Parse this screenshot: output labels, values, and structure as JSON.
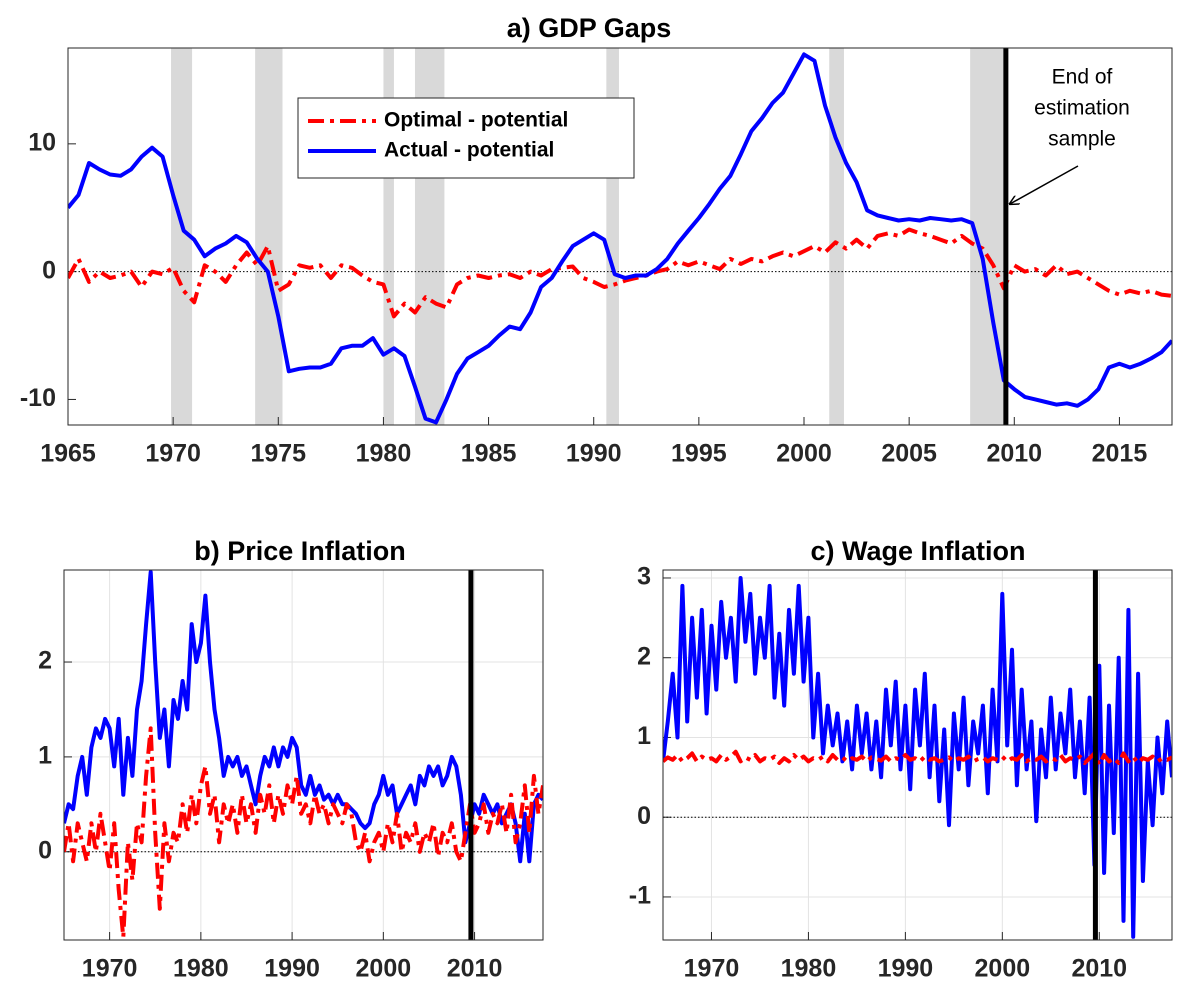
{
  "chart_data": [
    {
      "type": "line",
      "title": "a) GDP Gaps",
      "x": [
        1965,
        1965.5,
        1966,
        1966.5,
        1967,
        1967.5,
        1968,
        1968.5,
        1969,
        1969.5,
        1970,
        1970.5,
        1971,
        1971.5,
        1972,
        1972.5,
        1973,
        1973.5,
        1974,
        1974.5,
        1975,
        1975.5,
        1976,
        1976.5,
        1977,
        1977.5,
        1978,
        1978.5,
        1979,
        1979.5,
        1980,
        1980.5,
        1981,
        1981.5,
        1982,
        1982.5,
        1983,
        1983.5,
        1984,
        1984.5,
        1985,
        1985.5,
        1986,
        1986.5,
        1987,
        1987.5,
        1988,
        1988.5,
        1989,
        1989.5,
        1990,
        1990.5,
        1991,
        1991.5,
        1992,
        1992.5,
        1993,
        1993.5,
        1994,
        1994.5,
        1995,
        1995.5,
        1996,
        1996.5,
        1997,
        1997.5,
        1998,
        1998.5,
        1999,
        1999.5,
        2000,
        2000.5,
        2001,
        2001.5,
        2002,
        2002.5,
        2003,
        2003.5,
        2004,
        2004.5,
        2005,
        2005.5,
        2006,
        2006.5,
        2007,
        2007.5,
        2008,
        2008.5,
        2009,
        2009.5,
        2010,
        2010.5,
        2011,
        2011.5,
        2012,
        2012.5,
        2013,
        2013.5,
        2014,
        2014.5,
        2015,
        2015.5,
        2016,
        2016.5,
        2017,
        2017.5
      ],
      "series": [
        {
          "name": "Optimal - potential",
          "color": "#ff0000",
          "style": "dash-dot",
          "values": [
            -0.5,
            1,
            -0.8,
            0,
            -0.5,
            -0.3,
            0,
            -1.2,
            0,
            -0.2,
            0.3,
            -1.5,
            -2.4,
            0.5,
            0,
            -0.8,
            0.5,
            1.5,
            0.5,
            2,
            -1.5,
            -1,
            0.5,
            0.3,
            0.5,
            -0.5,
            0.5,
            0.3,
            -0.3,
            -0.8,
            -1,
            -3.5,
            -2.5,
            -3.2,
            -2,
            -2.5,
            -2.8,
            -1,
            -0.5,
            -0.3,
            -0.5,
            -0.3,
            -0.2,
            -0.5,
            0,
            -0.3,
            0.2,
            0.3,
            0.4,
            -0.5,
            -0.8,
            -1.2,
            -1,
            -0.7,
            -0.5,
            -0.3,
            0,
            0.2,
            0.8,
            0.5,
            0.8,
            0.5,
            0.2,
            1,
            0.6,
            1,
            0.8,
            1.2,
            1.5,
            1.2,
            1.6,
            2,
            1.5,
            2.3,
            1.8,
            2.5,
            1.8,
            2.8,
            3,
            2.8,
            3.3,
            3,
            2.8,
            2.5,
            2.2,
            2.8,
            2.2,
            1.8,
            0.5,
            -1.3,
            0.5,
            0,
            0.2,
            -0.3,
            0.5,
            -0.2,
            0,
            -0.5,
            -1,
            -1.5,
            -1.8,
            -1.5,
            -1.7,
            -1.5,
            -1.8,
            -1.9
          ]
        },
        {
          "name": "Actual - potential",
          "color": "#0000ff",
          "style": "solid",
          "values": [
            5,
            6,
            8.5,
            8,
            7.6,
            7.5,
            8,
            9,
            9.7,
            9,
            6,
            3.2,
            2.5,
            1.2,
            1.8,
            2.2,
            2.8,
            2.3,
            1,
            0,
            -3.5,
            -7.8,
            -7.6,
            -7.5,
            -7.5,
            -7.2,
            -6,
            -5.8,
            -5.8,
            -5.2,
            -6.5,
            -6,
            -6.6,
            -9,
            -11.5,
            -11.8,
            -10,
            -8,
            -6.8,
            -6.3,
            -5.8,
            -5,
            -4.3,
            -4.5,
            -3.2,
            -1.2,
            -0.5,
            0.8,
            2,
            2.5,
            3,
            2.5,
            -0.2,
            -0.5,
            -0.3,
            -0.3,
            0.2,
            1,
            2.2,
            3.2,
            4.2,
            5.3,
            6.5,
            7.5,
            9.2,
            11,
            12,
            13.2,
            14,
            15.5,
            17,
            16.5,
            13,
            10.5,
            8.5,
            7,
            4.8,
            4.4,
            4.2,
            4,
            4.1,
            4,
            4.2,
            4.1,
            4,
            4.1,
            3.8,
            1,
            -4,
            -8.5,
            -9.2,
            -9.8,
            -10,
            -10.2,
            -10.4,
            -10.3,
            -10.5,
            -10,
            -9.2,
            -7.5,
            -7.2,
            -7.5,
            -7.2,
            -6.8,
            -6.3,
            -5.4
          ]
        }
      ],
      "xlim": [
        1965,
        2017.5
      ],
      "xticks": [
        1965,
        1970,
        1975,
        1980,
        1985,
        1990,
        1995,
        2000,
        2005,
        2010,
        2015
      ],
      "ylim": [
        -12,
        17.5
      ],
      "yticks": [
        -10,
        0,
        10
      ],
      "grid": false,
      "shaded": [
        [
          1969.9,
          1970.9
        ],
        [
          1973.9,
          1975.2
        ],
        [
          1980,
          1980.5
        ],
        [
          1981.5,
          1982.9
        ],
        [
          1990.6,
          1991.2
        ],
        [
          2001.2,
          2001.9
        ],
        [
          2007.9,
          2009.5
        ]
      ],
      "vline": 2009.6,
      "annotation": [
        "End of",
        "estimation",
        "sample"
      ]
    },
    {
      "type": "line",
      "title": "b) Price Inflation",
      "x": [
        1965,
        1965.5,
        1966,
        1966.5,
        1967,
        1967.5,
        1968,
        1968.5,
        1969,
        1969.5,
        1970,
        1970.5,
        1971,
        1971.5,
        1972,
        1972.5,
        1973,
        1973.5,
        1974,
        1974.5,
        1975,
        1975.5,
        1976,
        1976.5,
        1977,
        1977.5,
        1978,
        1978.5,
        1979,
        1979.5,
        1980,
        1980.5,
        1981,
        1981.5,
        1982,
        1982.5,
        1983,
        1983.5,
        1984,
        1984.5,
        1985,
        1985.5,
        1986,
        1986.5,
        1987,
        1987.5,
        1988,
        1988.5,
        1989,
        1989.5,
        1990,
        1990.5,
        1991,
        1991.5,
        1992,
        1992.5,
        1993,
        1993.5,
        1994,
        1994.5,
        1995,
        1995.5,
        1996,
        1996.5,
        1997,
        1997.5,
        1998,
        1998.5,
        1999,
        1999.5,
        2000,
        2000.5,
        2001,
        2001.5,
        2002,
        2002.5,
        2003,
        2003.5,
        2004,
        2004.5,
        2005,
        2005.5,
        2006,
        2006.5,
        2007,
        2007.5,
        2008,
        2008.5,
        2009,
        2009.5,
        2010,
        2010.5,
        2011,
        2011.5,
        2012,
        2012.5,
        2013,
        2013.5,
        2014,
        2014.5,
        2015,
        2015.5,
        2016,
        2016.5,
        2017,
        2017.5
      ],
      "series": [
        {
          "color": "#0000ff",
          "style": "solid",
          "values": [
            0.3,
            0.5,
            0.45,
            0.8,
            1,
            0.6,
            1.1,
            1.3,
            1.2,
            1.4,
            1.3,
            0.9,
            1.4,
            0.6,
            1.2,
            0.8,
            1.5,
            1.8,
            2.4,
            2.95,
            2,
            1.2,
            1.5,
            0.9,
            1.6,
            1.4,
            1.8,
            1.5,
            2.4,
            2,
            2.2,
            2.7,
            2,
            1.5,
            1.2,
            0.8,
            1,
            0.9,
            1,
            0.8,
            0.9,
            0.7,
            0.5,
            0.8,
            1,
            0.9,
            1.1,
            0.9,
            1.1,
            1,
            1.2,
            1.1,
            0.7,
            0.6,
            0.8,
            0.6,
            0.7,
            0.55,
            0.6,
            0.5,
            0.6,
            0.5,
            0.5,
            0.45,
            0.4,
            0.3,
            0.25,
            0.3,
            0.5,
            0.6,
            0.8,
            0.6,
            0.7,
            0.4,
            0.5,
            0.6,
            0.7,
            0.5,
            0.8,
            0.7,
            0.9,
            0.8,
            0.9,
            0.7,
            0.8,
            1,
            0.9,
            0.6,
            0.1,
            0.3,
            0.5,
            0.4,
            0.6,
            0.5,
            0.4,
            0.5,
            0.3,
            0.4,
            0.5,
            0.3,
            -0.1,
            0.4,
            -0.1,
            0.5,
            0.6,
            0.55
          ]
        },
        {
          "color": "#ff0000",
          "style": "dash-dot",
          "values": [
            0,
            0.3,
            -0.1,
            0.3,
            0.1,
            -0.1,
            0.3,
            0,
            0.4,
            0.1,
            -0.2,
            0.3,
            -0.4,
            -0.9,
            0.1,
            -0.3,
            0.3,
            0.1,
            0.8,
            1.3,
            0.2,
            -0.6,
            0.3,
            -0.1,
            0.2,
            0.1,
            0.5,
            0.2,
            0.6,
            0.3,
            0.7,
            0.9,
            0.4,
            0.6,
            0.1,
            0.5,
            0.3,
            0.5,
            0.2,
            0.6,
            0.3,
            0.5,
            0.2,
            0.6,
            0.4,
            0.7,
            0.3,
            0.6,
            0.4,
            0.7,
            0.5,
            0.8,
            0.4,
            0.5,
            0.3,
            0.6,
            0.4,
            0.5,
            0.3,
            0.5,
            0.4,
            0.3,
            0.5,
            0.4,
            0.1,
            0,
            0.2,
            -0.1,
            0.1,
            0.2,
            0,
            0.3,
            0.1,
            0.4,
            0,
            0.2,
            0.1,
            0.3,
            0,
            0.2,
            0.1,
            0.3,
            -0.05,
            0.2,
            0.1,
            0.3,
            0,
            -0.1,
            0.2,
            0.5,
            0.2,
            0.3,
            0.5,
            0.2,
            0.4,
            0.3,
            0.5,
            0.2,
            0.6,
            0.1,
            0.3,
            0.7,
            0.2,
            0.8,
            0.4,
            0.7
          ]
        }
      ],
      "xlim": [
        1965,
        2017.5
      ],
      "xticks": [
        1970,
        1980,
        1990,
        2000,
        2010
      ],
      "ylim": [
        -0.93,
        2.97
      ],
      "yticks": [
        0,
        1,
        2
      ],
      "grid": true,
      "vline": 2009.6
    },
    {
      "type": "line",
      "title": "c) Wage Inflation",
      "x": [
        1965,
        1965.5,
        1966,
        1966.5,
        1967,
        1967.5,
        1968,
        1968.5,
        1969,
        1969.5,
        1970,
        1970.5,
        1971,
        1971.5,
        1972,
        1972.5,
        1973,
        1973.5,
        1974,
        1974.5,
        1975,
        1975.5,
        1976,
        1976.5,
        1977,
        1977.5,
        1978,
        1978.5,
        1979,
        1979.5,
        1980,
        1980.5,
        1981,
        1981.5,
        1982,
        1982.5,
        1983,
        1983.5,
        1984,
        1984.5,
        1985,
        1985.5,
        1986,
        1986.5,
        1987,
        1987.5,
        1988,
        1988.5,
        1989,
        1989.5,
        1990,
        1990.5,
        1991,
        1991.5,
        1992,
        1992.5,
        1993,
        1993.5,
        1994,
        1994.5,
        1995,
        1995.5,
        1996,
        1996.5,
        1997,
        1997.5,
        1998,
        1998.5,
        1999,
        1999.5,
        2000,
        2000.5,
        2001,
        2001.5,
        2002,
        2002.5,
        2003,
        2003.5,
        2004,
        2004.5,
        2005,
        2005.5,
        2006,
        2006.5,
        2007,
        2007.5,
        2008,
        2008.5,
        2009,
        2009.5,
        2010,
        2010.5,
        2011,
        2011.5,
        2012,
        2012.5,
        2013,
        2013.5,
        2014,
        2014.5,
        2015,
        2015.5,
        2016,
        2016.5,
        2017,
        2017.5
      ],
      "series": [
        {
          "color": "#0000ff",
          "style": "solid",
          "values": [
            0.7,
            1.2,
            1.8,
            1,
            2.9,
            1.2,
            2.5,
            1.5,
            2.6,
            1.3,
            2.4,
            1.6,
            2.7,
            2,
            2.5,
            1.7,
            3,
            2.2,
            2.8,
            1.8,
            2.5,
            2,
            2.9,
            1.5,
            2.3,
            1.4,
            2.6,
            1.8,
            2.9,
            1.7,
            2.5,
            1,
            1.8,
            0.8,
            1.4,
            0.9,
            1.3,
            0.7,
            1.2,
            0.6,
            1.4,
            0.8,
            1.3,
            0.6,
            1.2,
            0.5,
            1.6,
            0.9,
            1.7,
            0.6,
            1.4,
            0.35,
            1.6,
            0.9,
            1.8,
            0.5,
            1.4,
            0.2,
            1.1,
            -0.1,
            1.3,
            0.6,
            1.5,
            0.4,
            1.2,
            0.8,
            1.4,
            0.3,
            1.6,
            0.7,
            2.8,
            0.9,
            2.1,
            0.4,
            1.6,
            0.6,
            1.2,
            -0.05,
            1.1,
            0.5,
            1.5,
            0.6,
            1.3,
            0.8,
            1.6,
            0.5,
            1.2,
            0.3,
            1.5,
            -0.6,
            1.9,
            -0.7,
            1.4,
            -0.2,
            2,
            -1.3,
            2.6,
            -1.5,
            1.8,
            -0.8,
            0.7,
            -0.1,
            1,
            0.3,
            1.2,
            0.5
          ]
        },
        {
          "color": "#ff0000",
          "style": "dash-dot",
          "values": [
            0.7,
            0.75,
            0.72,
            0.78,
            0.7,
            0.74,
            0.8,
            0.7,
            0.76,
            0.72,
            0.74,
            0.7,
            0.78,
            0.72,
            0.76,
            0.82,
            0.7,
            0.75,
            0.72,
            0.78,
            0.7,
            0.74,
            0.72,
            0.76,
            0.68,
            0.74,
            0.7,
            0.78,
            0.72,
            0.76,
            0.7,
            0.74,
            0.72,
            0.76,
            0.7,
            0.78,
            0.72,
            0.75,
            0.7,
            0.74,
            0.72,
            0.76,
            0.7,
            0.75,
            0.73,
            0.71,
            0.76,
            0.7,
            0.74,
            0.72,
            0.78,
            0.72,
            0.74,
            0.7,
            0.76,
            0.72,
            0.74,
            0.7,
            0.72,
            0.75,
            0.7,
            0.74,
            0.72,
            0.76,
            0.7,
            0.73,
            0.75,
            0.7,
            0.74,
            0.72,
            0.76,
            0.7,
            0.74,
            0.72,
            0.78,
            0.7,
            0.74,
            0.72,
            0.76,
            0.7,
            0.74,
            0.72,
            0.78,
            0.7,
            0.74,
            0.72,
            0.76,
            0.68,
            0.74,
            0.8,
            0.66,
            0.78,
            0.7,
            0.74,
            0.68,
            0.8,
            0.7,
            0.76,
            0.68,
            0.74,
            0.72,
            0.76,
            0.7,
            0.74,
            0.72,
            0.75
          ]
        }
      ],
      "xlim": [
        1965,
        2017.5
      ],
      "xticks": [
        1970,
        1980,
        1990,
        2000,
        2010
      ],
      "ylim": [
        -1.54,
        3.1
      ],
      "yticks": [
        -1,
        0,
        1,
        2,
        3
      ],
      "grid": true,
      "vline": 2009.6
    }
  ]
}
